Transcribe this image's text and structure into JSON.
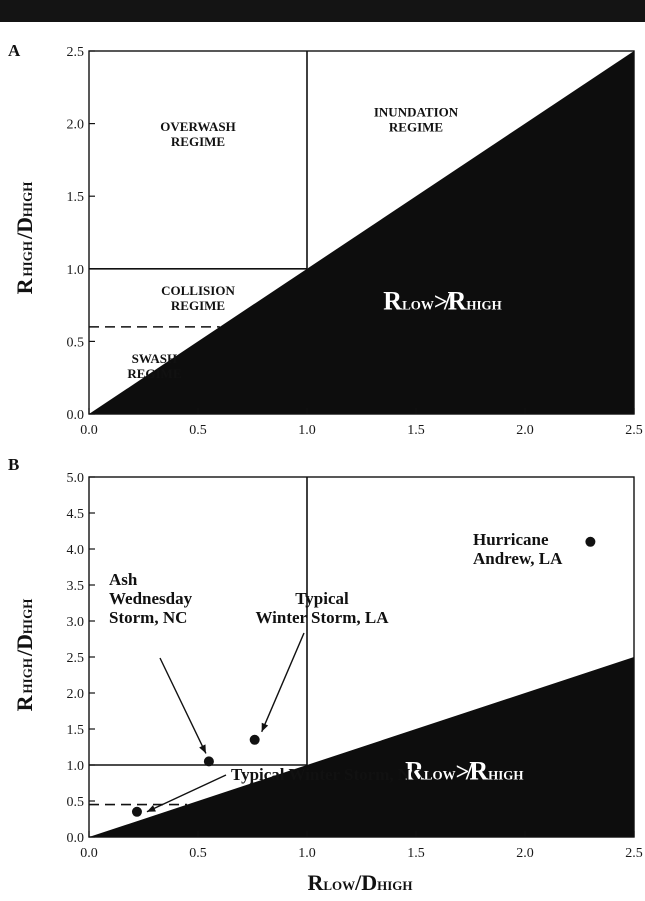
{
  "chart_data": [
    {
      "type": "scatter",
      "panel": "A",
      "xlim": [
        0,
        2.5
      ],
      "ylim": [
        0,
        2.5
      ],
      "x_ticks": [
        "0.0",
        "0.5",
        "1.0",
        "1.5",
        "2.0",
        "2.5"
      ],
      "y_ticks": [
        "0.0",
        "0.5",
        "1.0",
        "1.5",
        "2.0",
        "2.5"
      ],
      "ylabel": {
        "main": "R",
        "sub1": "HIGH",
        "mid": "/D",
        "sub2": "HIGH"
      },
      "regimes": [
        {
          "lines": [
            "OVERWASH",
            "REGIME"
          ],
          "x": 0.5,
          "y": 1.95
        },
        {
          "lines": [
            "INUNDATION",
            "REGIME"
          ],
          "x": 1.5,
          "y": 2.05
        },
        {
          "lines": [
            "COLLISION",
            "REGIME"
          ],
          "x": 0.5,
          "y": 0.82
        },
        {
          "lines": [
            "SWASH",
            "REGIME"
          ],
          "x": 0.3,
          "y": 0.35
        }
      ],
      "boundaries": {
        "regime_x": 1.0,
        "collision_y": 1.0,
        "swash_y": 0.6
      },
      "excluded_label": {
        "R": "R",
        "low": "LOW",
        "neq": "≯",
        "high": "HIGH",
        "x": 1.35,
        "y": 0.72
      },
      "grid": false
    },
    {
      "type": "scatter",
      "panel": "B",
      "xlim": [
        0,
        2.5
      ],
      "ylim": [
        0,
        5.0
      ],
      "x_ticks": [
        "0.0",
        "0.5",
        "1.0",
        "1.5",
        "2.0",
        "2.5"
      ],
      "y_ticks": [
        "0.0",
        "0.5",
        "1.0",
        "1.5",
        "2.0",
        "2.5",
        "3.0",
        "3.5",
        "4.0",
        "4.5",
        "5.0"
      ],
      "xlabel": {
        "main": "R",
        "sub1": "LOW",
        "mid": "/D",
        "sub2": "HIGH"
      },
      "ylabel": {
        "main": "R",
        "sub1": "HIGH",
        "mid": "/D",
        "sub2": "HIGH"
      },
      "boundaries": {
        "regime_x": 1.0,
        "collision_y": 1.0,
        "swash_y": 0.45
      },
      "excluded_label": {
        "R": "R",
        "low": "LOW",
        "neq": "≯",
        "high": "HIGH",
        "x": 1.45,
        "y": 0.8
      },
      "points": [
        {
          "name": "Hurricane Andrew, LA",
          "x": 2.3,
          "y": 4.1,
          "label_lines": [
            "Hurricane",
            "Andrew, LA"
          ]
        },
        {
          "name": "Ash Wednesday Storm, NC",
          "x": 0.55,
          "y": 1.05,
          "label_lines": [
            "Ash",
            "Wednesday",
            "Storm, NC"
          ]
        },
        {
          "name": "Typical Winter Storm, LA",
          "x": 0.76,
          "y": 1.35,
          "label_lines": [
            "Typical",
            "Winter Storm, LA"
          ]
        },
        {
          "name": "Typical Winter Storm, NC",
          "x": 0.22,
          "y": 0.35,
          "label_lines": [
            "Typical Winter Storm, NC"
          ]
        }
      ],
      "grid": false
    }
  ],
  "colors": {
    "ink": "#111111",
    "fill": "#0d0d0d",
    "background": "#ffffff"
  }
}
